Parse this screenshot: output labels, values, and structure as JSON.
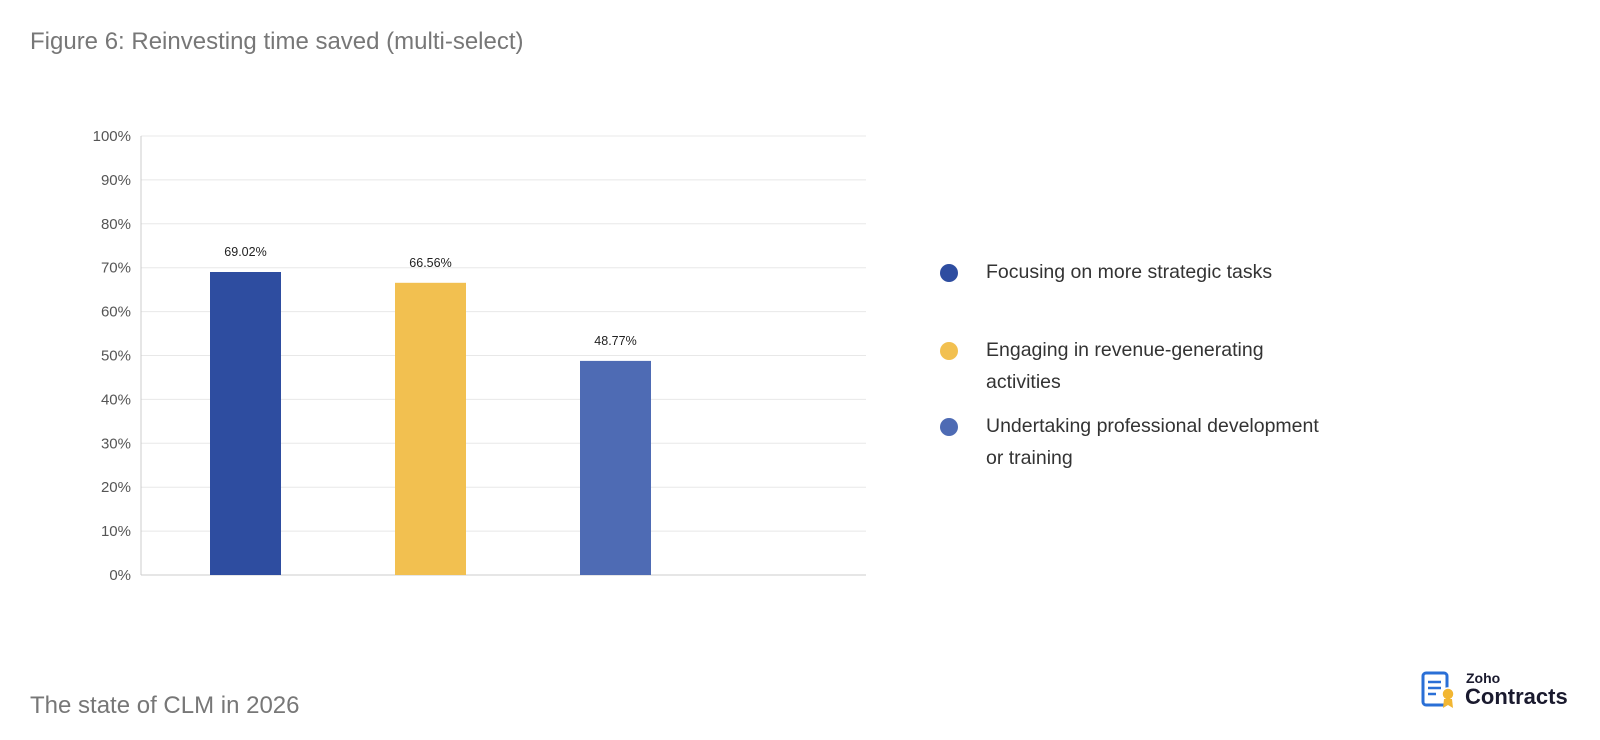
{
  "figure_title": "Figure 6: Reinvesting time saved (multi-select)",
  "footer_text": "The state of CLM in 2026",
  "logo": {
    "brand": "Zoho",
    "product": "Contracts",
    "icon": "contract-document-icon"
  },
  "colors": {
    "dark_blue": "#2e4da0",
    "yellow": "#f2c050",
    "medium_blue": "#4e6bb4",
    "grid": "#e8e8e8",
    "axis_text": "#555555"
  },
  "chart_data": {
    "type": "bar",
    "title": "Figure 6: Reinvesting time saved (multi-select)",
    "xlabel": "",
    "ylabel": "",
    "ylim": [
      0,
      100
    ],
    "yticks": [
      "0%",
      "10%",
      "20%",
      "30%",
      "40%",
      "50%",
      "60%",
      "70%",
      "80%",
      "90%",
      "100%"
    ],
    "grid": true,
    "legend_position": "right",
    "categories": [
      "Focusing on more strategic tasks",
      "Engaging in revenue-generating activities",
      "Undertaking professional development or training"
    ],
    "values": [
      69.02,
      66.56,
      48.77
    ],
    "data_labels": [
      "69.02%",
      "66.56%",
      "48.77%"
    ],
    "bar_colors": [
      "#2e4da0",
      "#f2c050",
      "#4e6bb4"
    ]
  }
}
